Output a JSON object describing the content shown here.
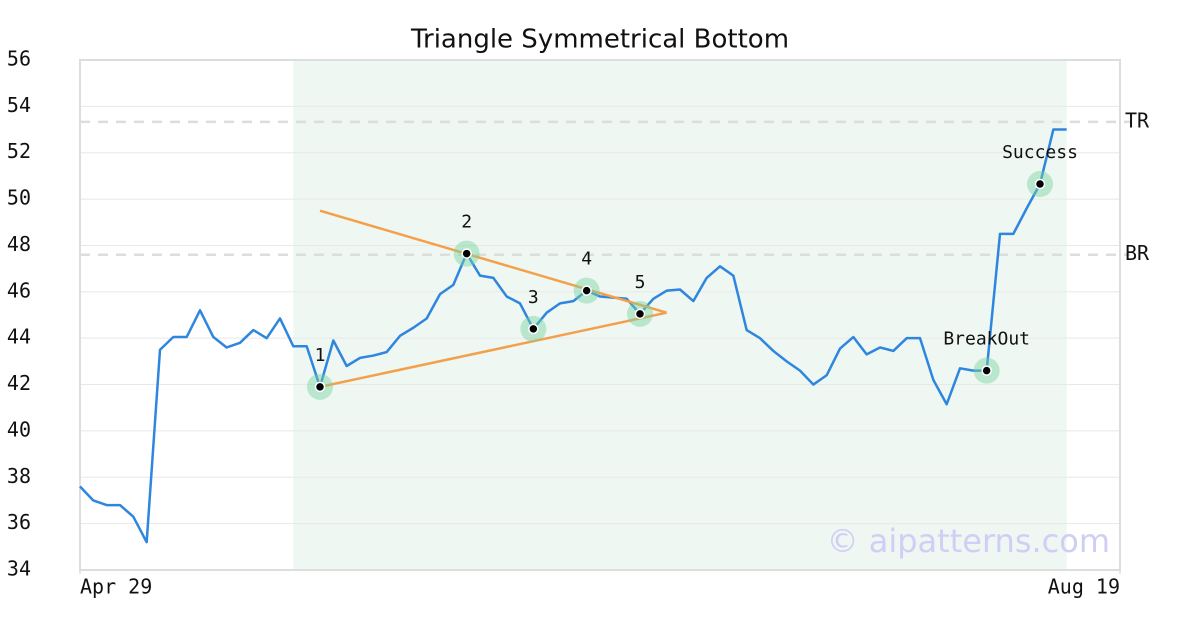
{
  "chart_data": {
    "type": "line",
    "title": "Triangle Symmetrical Bottom",
    "x": [
      0,
      1,
      2,
      3,
      4,
      5,
      6,
      7,
      8,
      9,
      10,
      11,
      12,
      13,
      14,
      15,
      16,
      17,
      18,
      19,
      20,
      21,
      22,
      23,
      24,
      25,
      26,
      27,
      28,
      29,
      30,
      31,
      32,
      33,
      34,
      35,
      36,
      37,
      38,
      39,
      40,
      41,
      42,
      43,
      44,
      45,
      46,
      47,
      48,
      49,
      50,
      51,
      52,
      53,
      54,
      55,
      56,
      57,
      58,
      59,
      60,
      61,
      62,
      63,
      64,
      65,
      66,
      67,
      68,
      69,
      70,
      71,
      72,
      73,
      74
    ],
    "values": [
      37.6,
      37.0,
      36.8,
      36.8,
      36.3,
      35.2,
      43.5,
      44.05,
      44.05,
      45.2,
      44.05,
      43.6,
      43.8,
      44.35,
      44.0,
      44.85,
      43.65,
      43.65,
      41.9,
      43.9,
      42.8,
      43.15,
      43.25,
      43.4,
      44.1,
      44.45,
      44.85,
      45.9,
      46.3,
      47.65,
      46.7,
      46.6,
      45.8,
      45.5,
      44.4,
      45.1,
      45.5,
      45.6,
      46.05,
      45.8,
      45.75,
      45.7,
      45.05,
      45.7,
      46.05,
      46.1,
      45.6,
      46.6,
      47.1,
      46.7,
      44.35,
      44.0,
      43.45,
      43.0,
      42.6,
      42.0,
      42.4,
      43.55,
      44.05,
      43.3,
      43.6,
      43.45,
      44.0,
      44.0,
      42.2,
      41.15,
      42.7,
      42.6,
      42.6,
      48.5,
      48.5,
      49.6,
      50.65,
      53.0,
      53.0
    ],
    "color": "#2e86de",
    "xlim": [
      0,
      78
    ],
    "xticks": [
      {
        "value": 0,
        "label": "Apr 29"
      },
      {
        "value": 78,
        "label": "Aug 19"
      }
    ],
    "ylim": [
      34,
      56
    ],
    "yticks": [
      34,
      36,
      38,
      40,
      42,
      44,
      46,
      48,
      50,
      52,
      54,
      56
    ],
    "grid": true,
    "shaded_range": [
      16,
      74
    ],
    "hlines": [
      {
        "label": "TR",
        "value": 53.33
      },
      {
        "label": "BR",
        "value": 47.6
      }
    ],
    "trend_color": "#f4a04a",
    "trend_lines": [
      {
        "x": [
          18,
          44
        ],
        "y": [
          49.5,
          45.1
        ]
      },
      {
        "x": [
          18,
          44
        ],
        "y": [
          41.9,
          45.1
        ]
      }
    ],
    "pattern_points": [
      {
        "label": "1",
        "x": 18,
        "y": 41.9
      },
      {
        "label": "2",
        "x": 29,
        "y": 47.65
      },
      {
        "label": "3",
        "x": 34,
        "y": 44.4
      },
      {
        "label": "4",
        "x": 38,
        "y": 46.05
      },
      {
        "label": "5",
        "x": 42,
        "y": 45.05
      },
      {
        "label": "BreakOut",
        "x": 68,
        "y": 42.6
      },
      {
        "label": "Success",
        "x": 72,
        "y": 50.65
      }
    ],
    "watermark": "© aipatterns.com"
  }
}
